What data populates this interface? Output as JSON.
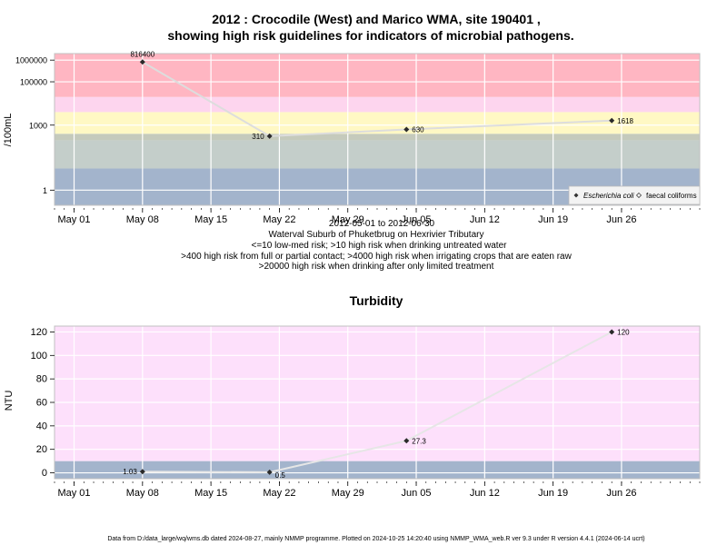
{
  "chart_data": [
    {
      "type": "line",
      "title": "2012 : Crocodile (West) and Marico WMA, site 190401 ,",
      "title2": "showing high risk guidelines for indicators of microbial pathogens.",
      "ylabel": "/100mL",
      "yscale": "log",
      "ylim": [
        0.2,
        2000000
      ],
      "xlim": [
        "2012-04-29",
        "2012-07-04"
      ],
      "y_ticks": [
        {
          "value": 1,
          "label": "1"
        },
        {
          "value": 1000,
          "label": "1000"
        },
        {
          "value": 100000,
          "label": "100000"
        },
        {
          "value": 1000000,
          "label": "1000000"
        }
      ],
      "x_ticks": [
        {
          "date": "2012-05-01",
          "label": "May 01"
        },
        {
          "date": "2012-05-08",
          "label": "May 08"
        },
        {
          "date": "2012-05-15",
          "label": "May 15"
        },
        {
          "date": "2012-05-22",
          "label": "May 22"
        },
        {
          "date": "2012-05-29",
          "label": "May 29"
        },
        {
          "date": "2012-06-05",
          "label": "Jun 05"
        },
        {
          "date": "2012-06-12",
          "label": "Jun 12"
        },
        {
          "date": "2012-06-19",
          "label": "Jun 19"
        },
        {
          "date": "2012-06-26",
          "label": "Jun 26"
        }
      ],
      "bands": [
        {
          "from": 0.2,
          "to": 10,
          "color": "#a3b4cc"
        },
        {
          "from": 10,
          "to": 200,
          "color": "#c4ceca"
        },
        {
          "from": 200,
          "to": 400,
          "color": "#c5cabc"
        },
        {
          "from": 400,
          "to": 4000,
          "color": "#fff8c4"
        },
        {
          "from": 4000,
          "to": 20000,
          "color": "#fdd5ee"
        },
        {
          "from": 20000,
          "to": 2000000,
          "color": "#ffb6c2"
        }
      ],
      "series": [
        {
          "name": "Escherichia coli",
          "color": "#dddddd",
          "points": [
            {
              "date": "2012-05-08",
              "value": 816400,
              "label": "816400",
              "label_side": "top"
            },
            {
              "date": "2012-05-21",
              "value": 310,
              "label": "310",
              "label_side": "left"
            },
            {
              "date": "2012-06-04",
              "value": 630,
              "label": "630",
              "label_side": "right"
            },
            {
              "date": "2012-06-25",
              "value": 1618,
              "label": "1618",
              "label_side": "right"
            }
          ]
        }
      ],
      "legend": {
        "position": "bottom-right",
        "entries": [
          {
            "label": "Escherichia coli",
            "marker": "filled-diamond"
          },
          {
            "label": "faecal coliforms",
            "marker": "open-diamond"
          }
        ]
      },
      "xlabel_lines": [
        "2012-05-01 to 2012-06-30",
        "Waterval Suburb of Phuketbrug on Hexrivier Tributary",
        "<=10 low-med risk; >10 high risk when drinking untreated water",
        ">400 high risk from full or partial contact; >4000 high risk when irrigating crops that are eaten raw",
        ">20000 high risk when drinking after only limited treatment"
      ]
    },
    {
      "type": "line",
      "title": "Turbidity",
      "ylabel": "NTU",
      "ylim": [
        -5,
        125
      ],
      "xlim": [
        "2012-04-29",
        "2012-07-04"
      ],
      "y_ticks": [
        {
          "value": 0,
          "label": "0"
        },
        {
          "value": 20,
          "label": "20"
        },
        {
          "value": 40,
          "label": "40"
        },
        {
          "value": 60,
          "label": "60"
        },
        {
          "value": 80,
          "label": "80"
        },
        {
          "value": 100,
          "label": "100"
        },
        {
          "value": 120,
          "label": "120"
        }
      ],
      "x_ticks": [
        {
          "date": "2012-05-01",
          "label": "May 01"
        },
        {
          "date": "2012-05-08",
          "label": "May 08"
        },
        {
          "date": "2012-05-15",
          "label": "May 15"
        },
        {
          "date": "2012-05-22",
          "label": "May 22"
        },
        {
          "date": "2012-05-29",
          "label": "May 29"
        },
        {
          "date": "2012-06-05",
          "label": "Jun 05"
        },
        {
          "date": "2012-06-12",
          "label": "Jun 12"
        },
        {
          "date": "2012-06-19",
          "label": "Jun 19"
        },
        {
          "date": "2012-06-26",
          "label": "Jun 26"
        }
      ],
      "bands": [
        {
          "from": -5,
          "to": 10,
          "color": "#a3b4cc"
        },
        {
          "from": 10,
          "to": 125,
          "color": "#fde0fb"
        }
      ],
      "series": [
        {
          "color": "#e6e6e6",
          "points": [
            {
              "date": "2012-05-08",
              "value": 1.03,
              "label": "1.03",
              "label_side": "left"
            },
            {
              "date": "2012-05-21",
              "value": 0.5,
              "label": "0.5",
              "label_side": "right-below"
            },
            {
              "date": "2012-06-04",
              "value": 27.3,
              "label": "27.3",
              "label_side": "right"
            },
            {
              "date": "2012-06-25",
              "value": 120,
              "label": "120",
              "label_side": "right"
            }
          ]
        }
      ]
    }
  ],
  "footer": "Data from D:/data_large/wq/wms.db dated 2024-08-27, mainly NMMP programme. Plotted on 2024-10-25 14:20:40 using NMMP_WMA_web.R ver 9.3 under R version 4.4.1 (2024-06-14 ucrt)"
}
